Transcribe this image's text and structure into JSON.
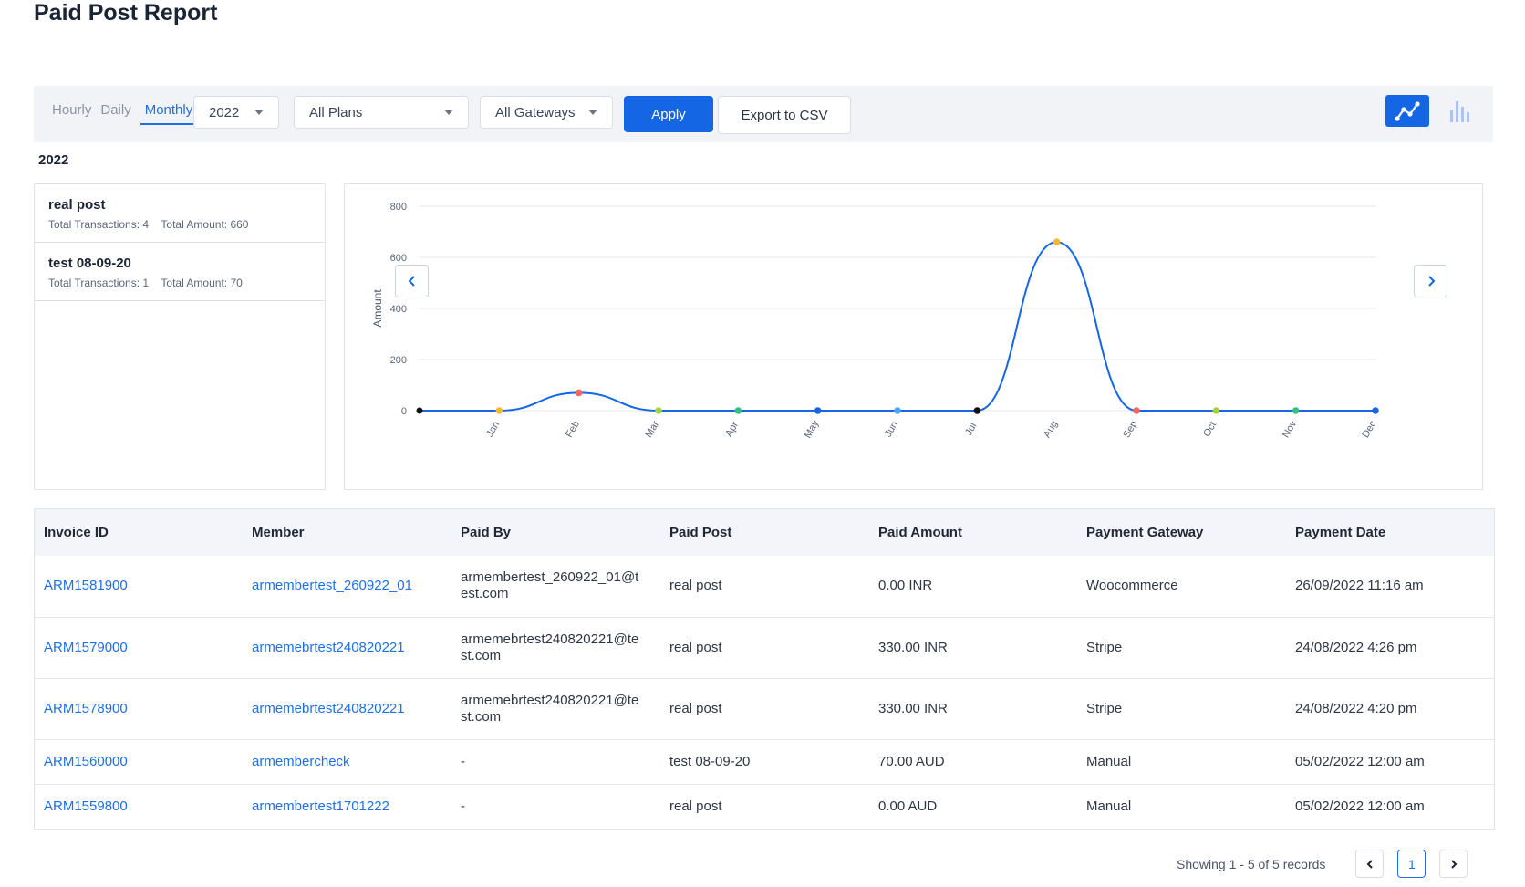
{
  "page": {
    "title": "Paid Post Report"
  },
  "filters": {
    "period_tabs": [
      "Hourly",
      "Daily",
      "Monthly"
    ],
    "active_period": "Monthly",
    "year": "2022",
    "plans": "All Plans",
    "gateways": "All Gateways",
    "apply_label": "Apply",
    "export_label": "Export to CSV"
  },
  "year_heading": "2022",
  "plans": [
    {
      "name": "real post",
      "transactions": "Total Transactions: 4",
      "amount": "Total Amount: 660"
    },
    {
      "name": "test 08-09-20",
      "transactions": "Total Transactions: 1",
      "amount": "Total Amount: 70"
    }
  ],
  "chart_data": {
    "type": "line",
    "categories": [
      "Jan",
      "Feb",
      "Mar",
      "Apr",
      "May",
      "Jun",
      "Jul",
      "Aug",
      "Sep",
      "Oct",
      "Nov",
      "Dec"
    ],
    "values": [
      0,
      70,
      0,
      0,
      0,
      0,
      0,
      660,
      0,
      0,
      0,
      0
    ],
    "point_colors": [
      "#f5b82e",
      "#f06860",
      "#a6d23a",
      "#2ec27e",
      "#1466e5",
      "#4ba3f7",
      "#111111",
      "#f5b82e",
      "#f06860",
      "#a6d23a",
      "#2ec27e",
      "#1466e5"
    ],
    "ylabel": "Amount",
    "ylim": [
      0,
      800
    ],
    "yticks": [
      0,
      200,
      400,
      600,
      800
    ],
    "line_color": "#1466e5"
  },
  "table": {
    "headers": [
      "Invoice ID",
      "Member",
      "Paid By",
      "Paid Post",
      "Paid Amount",
      "Payment Gateway",
      "Payment Date"
    ],
    "rows": [
      [
        "ARM1581900",
        "armembertest_260922_01",
        "armembertest_260922_01@test.com",
        "real post",
        "0.00 INR",
        "Woocommerce",
        "26/09/2022 11:16 am"
      ],
      [
        "ARM1579000",
        "armemebrtest240820221",
        "armemebrtest240820221@test.com",
        "real post",
        "330.00 INR",
        "Stripe",
        "24/08/2022 4:26 pm"
      ],
      [
        "ARM1578900",
        "armemebrtest240820221",
        "armemebrtest240820221@test.com",
        "real post",
        "330.00 INR",
        "Stripe",
        "24/08/2022 4:20 pm"
      ],
      [
        "ARM1560000",
        "armembercheck",
        "-",
        "test 08-09-20",
        "70.00 AUD",
        "Manual",
        "05/02/2022 12:00 am"
      ],
      [
        "ARM1559800",
        "armembertest1701222",
        "-",
        "real post",
        "0.00 AUD",
        "Manual",
        "05/02/2022 12:00 am"
      ]
    ]
  },
  "pagination": {
    "info": "Showing 1 - 5 of 5 records",
    "current_page": "1"
  }
}
